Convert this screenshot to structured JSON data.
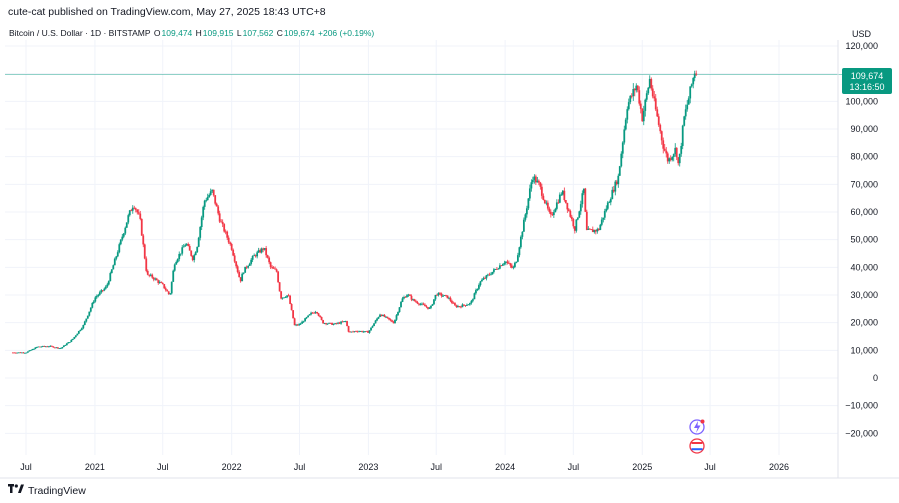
{
  "publisher": "cute-cat published on TradingView.com, May 27, 2025 18:43 UTC+8",
  "symbol": "Bitcoin / U.S. Dollar · 1D · BITSTAMP",
  "ohlc": {
    "open_label": "O",
    "open": "109,474",
    "high_label": "H",
    "high": "109,915",
    "low_label": "L",
    "low": "107,562",
    "close_label": "C",
    "close": "109,674",
    "change": "+206 (+0.19%)"
  },
  "currency": "USD",
  "price_badge": {
    "price": "109,674",
    "countdown": "13:16:50"
  },
  "footer_brand": "TradingView",
  "colors": {
    "up": "#089981",
    "down": "#f23645",
    "badge": "#089981",
    "grid": "#f0f3fa"
  },
  "icons": [
    "tv-logo-icon",
    "flash-alert-icon",
    "us-flag-earnings-icon"
  ],
  "chart_data": {
    "type": "candlestick",
    "title": "",
    "xlabel": "",
    "ylabel": "",
    "ylim": [
      -25000,
      125000
    ],
    "grid": true,
    "yticks": [
      120000,
      110000,
      100000,
      90000,
      80000,
      70000,
      60000,
      50000,
      40000,
      30000,
      20000,
      10000,
      0,
      -10000,
      -20000
    ],
    "ytick_labels": [
      "120,000",
      "110,000",
      "100,000",
      "90,000",
      "80,000",
      "70,000",
      "60,000",
      "50,000",
      "40,000",
      "30,000",
      "20,000",
      "10,000",
      "0",
      "−10,000",
      "−20,000"
    ],
    "xticks": [
      {
        "label": "Jul",
        "date": "2020-07-01"
      },
      {
        "label": "2021",
        "date": "2021-01-01"
      },
      {
        "label": "Jul",
        "date": "2021-07-01"
      },
      {
        "label": "2022",
        "date": "2022-01-01"
      },
      {
        "label": "Jul",
        "date": "2022-07-01"
      },
      {
        "label": "2023",
        "date": "2023-01-01"
      },
      {
        "label": "Jul",
        "date": "2023-07-01"
      },
      {
        "label": "2024",
        "date": "2024-01-01"
      },
      {
        "label": "Jul",
        "date": "2024-07-01"
      },
      {
        "label": "2025",
        "date": "2025-01-01"
      },
      {
        "label": "Jul",
        "date": "2025-07-01"
      },
      {
        "label": "2026",
        "date": "2026-01-01"
      }
    ],
    "last_price": 109674,
    "series": [
      {
        "date": "2020-05-27",
        "close": 9200
      },
      {
        "date": "2020-07-01",
        "close": 9200
      },
      {
        "date": "2020-08-01",
        "close": 11300
      },
      {
        "date": "2020-09-01",
        "close": 11500
      },
      {
        "date": "2020-10-01",
        "close": 10700
      },
      {
        "date": "2020-11-01",
        "close": 13800
      },
      {
        "date": "2020-12-01",
        "close": 19000
      },
      {
        "date": "2021-01-01",
        "close": 29000
      },
      {
        "date": "2021-02-01",
        "close": 33000
      },
      {
        "date": "2021-03-01",
        "close": 45000
      },
      {
        "date": "2021-04-01",
        "close": 58800
      },
      {
        "date": "2021-04-14",
        "close": 63000
      },
      {
        "date": "2021-05-01",
        "close": 57700
      },
      {
        "date": "2021-05-20",
        "close": 37000
      },
      {
        "date": "2021-06-01",
        "close": 36700
      },
      {
        "date": "2021-07-01",
        "close": 33500
      },
      {
        "date": "2021-07-20",
        "close": 29800
      },
      {
        "date": "2021-08-01",
        "close": 41500
      },
      {
        "date": "2021-09-01",
        "close": 48800
      },
      {
        "date": "2021-09-20",
        "close": 43000
      },
      {
        "date": "2021-10-01",
        "close": 48000
      },
      {
        "date": "2021-10-20",
        "close": 64000
      },
      {
        "date": "2021-11-10",
        "close": 67500
      },
      {
        "date": "2021-12-01",
        "close": 57000
      },
      {
        "date": "2022-01-01",
        "close": 47000
      },
      {
        "date": "2022-01-24",
        "close": 35000
      },
      {
        "date": "2022-02-01",
        "close": 38500
      },
      {
        "date": "2022-03-01",
        "close": 44000
      },
      {
        "date": "2022-03-28",
        "close": 47000
      },
      {
        "date": "2022-04-15",
        "close": 40000
      },
      {
        "date": "2022-05-01",
        "close": 38500
      },
      {
        "date": "2022-05-12",
        "close": 29000
      },
      {
        "date": "2022-06-01",
        "close": 30000
      },
      {
        "date": "2022-06-18",
        "close": 19000
      },
      {
        "date": "2022-07-01",
        "close": 19300
      },
      {
        "date": "2022-08-01",
        "close": 23300
      },
      {
        "date": "2022-08-15",
        "close": 24300
      },
      {
        "date": "2022-09-01",
        "close": 20000
      },
      {
        "date": "2022-10-01",
        "close": 19400
      },
      {
        "date": "2022-11-01",
        "close": 20500
      },
      {
        "date": "2022-11-10",
        "close": 16500
      },
      {
        "date": "2022-12-01",
        "close": 17000
      },
      {
        "date": "2023-01-01",
        "close": 16600
      },
      {
        "date": "2023-02-01",
        "close": 23100
      },
      {
        "date": "2023-03-10",
        "close": 20000
      },
      {
        "date": "2023-04-01",
        "close": 28500
      },
      {
        "date": "2023-04-15",
        "close": 30300
      },
      {
        "date": "2023-05-01",
        "close": 28000
      },
      {
        "date": "2023-06-15",
        "close": 25000
      },
      {
        "date": "2023-07-01",
        "close": 30500
      },
      {
        "date": "2023-08-01",
        "close": 29200
      },
      {
        "date": "2023-08-20",
        "close": 26000
      },
      {
        "date": "2023-09-01",
        "close": 25900
      },
      {
        "date": "2023-10-01",
        "close": 27000
      },
      {
        "date": "2023-10-25",
        "close": 34500
      },
      {
        "date": "2023-11-01",
        "close": 35400
      },
      {
        "date": "2023-12-01",
        "close": 38700
      },
      {
        "date": "2024-01-01",
        "close": 42300
      },
      {
        "date": "2024-01-22",
        "close": 39500
      },
      {
        "date": "2024-02-01",
        "close": 43000
      },
      {
        "date": "2024-02-28",
        "close": 62000
      },
      {
        "date": "2024-03-14",
        "close": 73000
      },
      {
        "date": "2024-04-01",
        "close": 69700
      },
      {
        "date": "2024-05-01",
        "close": 58000
      },
      {
        "date": "2024-06-01",
        "close": 67500
      },
      {
        "date": "2024-07-05",
        "close": 54000
      },
      {
        "date": "2024-07-29",
        "close": 68000
      },
      {
        "date": "2024-08-05",
        "close": 53000
      },
      {
        "date": "2024-09-06",
        "close": 53500
      },
      {
        "date": "2024-10-01",
        "close": 63000
      },
      {
        "date": "2024-10-29",
        "close": 72700
      },
      {
        "date": "2024-11-12",
        "close": 88000
      },
      {
        "date": "2024-11-22",
        "close": 98500
      },
      {
        "date": "2024-12-17",
        "close": 106000
      },
      {
        "date": "2025-01-01",
        "close": 94000
      },
      {
        "date": "2025-01-21",
        "close": 108000
      },
      {
        "date": "2025-02-01",
        "close": 100000
      },
      {
        "date": "2025-02-26",
        "close": 84000
      },
      {
        "date": "2025-03-11",
        "close": 78500
      },
      {
        "date": "2025-04-01",
        "close": 83000
      },
      {
        "date": "2025-04-08",
        "close": 76500
      },
      {
        "date": "2025-04-22",
        "close": 93500
      },
      {
        "date": "2025-05-08",
        "close": 103000
      },
      {
        "date": "2025-05-22",
        "close": 111500
      },
      {
        "date": "2025-05-27",
        "close": 109674
      }
    ]
  }
}
